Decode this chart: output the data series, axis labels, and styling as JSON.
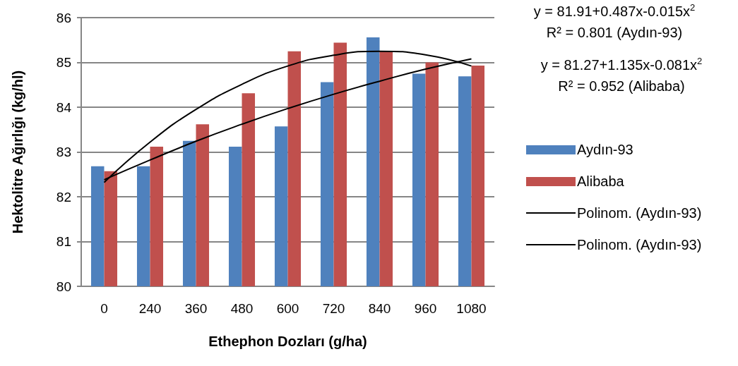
{
  "chart_data": {
    "type": "bar",
    "xlabel": "Ethephon Dozları (g/ha)",
    "ylabel": "Hektolitre Ağırlığı (kg/hl)",
    "categories": [
      "0",
      "240",
      "360",
      "480",
      "600",
      "720",
      "840",
      "960",
      "1080"
    ],
    "series": [
      {
        "name": "Aydın-93",
        "color": "#4f81bd",
        "values": [
          82.68,
          82.68,
          83.25,
          83.12,
          83.57,
          84.56,
          85.56,
          84.75,
          84.69
        ]
      },
      {
        "name": "Alibaba",
        "color": "#c0504d",
        "values": [
          82.57,
          83.12,
          83.62,
          84.31,
          85.25,
          85.44,
          85.25,
          85.0,
          84.93
        ]
      },
      {
        "name": "Polinom. (Aydın-93)",
        "type": "line",
        "color": "#000000",
        "values": [
          82.38,
          82.82,
          83.24,
          83.62,
          83.97,
          84.29,
          84.58,
          84.85,
          85.08
        ]
      },
      {
        "name": "Polinom. (Aydın-93)",
        "type": "line",
        "color": "#000000",
        "values": [
          82.32,
          83.22,
          83.95,
          84.51,
          84.92,
          85.16,
          85.25,
          85.17,
          84.92
        ]
      }
    ],
    "ylim": [
      80,
      86
    ],
    "yticks": [
      80,
      81,
      82,
      83,
      84,
      85,
      86
    ],
    "grid": "y",
    "legend": "right",
    "marker": "none",
    "annotations": [
      "y = 81.91+0.487x-0.015x$^{2}$",
      "R² = 0.801 (Aydın-93)",
      "y = 81.27+1.135x-0.081x$^{2}$",
      "R² = 0.952 (Alibaba)"
    ]
  }
}
